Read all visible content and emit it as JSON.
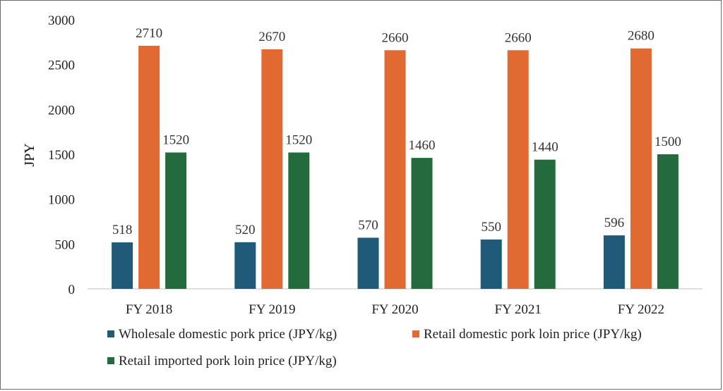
{
  "chart_data": {
    "type": "bar",
    "categories": [
      "FY 2018",
      "FY 2019",
      "FY 2020",
      "FY 2021",
      "FY 2022"
    ],
    "series": [
      {
        "name": "Wholesale domestic pork price (JPY/kg)",
        "color": "#1f5a78",
        "values": [
          518,
          520,
          570,
          550,
          596
        ]
      },
      {
        "name": "Retail domestic pork loin price (JPY/kg)",
        "color": "#e06a32",
        "values": [
          2710,
          2670,
          2660,
          2660,
          2680
        ]
      },
      {
        "name": "Retail imported pork loin price (JPY/kg)",
        "color": "#236b3c",
        "values": [
          1520,
          1520,
          1460,
          1440,
          1500
        ]
      }
    ],
    "ylabel": "JPY",
    "ylim": [
      0,
      3000
    ],
    "yticks": [
      0,
      500,
      1000,
      1500,
      2000,
      2500,
      3000
    ],
    "grid": false,
    "legend_position": "bottom"
  }
}
